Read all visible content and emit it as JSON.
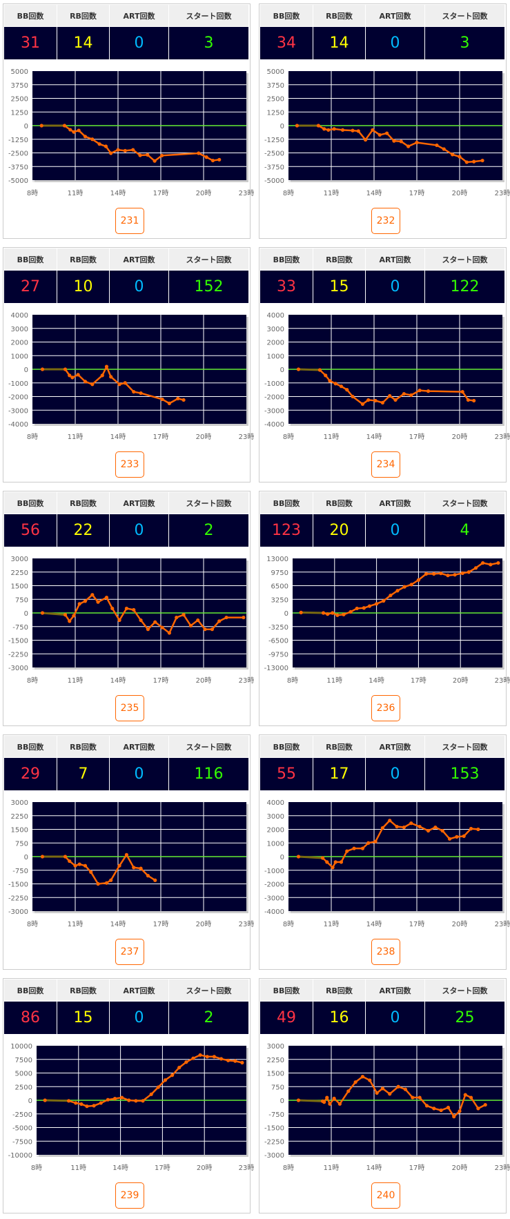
{
  "headers": {
    "bb": "BB回数",
    "rb": "RB回数",
    "art": "ART回数",
    "start": "スタート回数"
  },
  "colors": {
    "bb": "#ff3344",
    "rb": "#ffff00",
    "art": "#00bbff",
    "start": "#33ff00",
    "plot_bg": "#000030",
    "line": "#ff6600",
    "zero_line": "#66ee33",
    "button": "#ff6600"
  },
  "machines": [
    {
      "id": "231",
      "bb": "31",
      "rb": "14",
      "art": "0",
      "start": "3"
    },
    {
      "id": "232",
      "bb": "34",
      "rb": "14",
      "art": "0",
      "start": "3"
    },
    {
      "id": "233",
      "bb": "27",
      "rb": "10",
      "art": "0",
      "start": "152"
    },
    {
      "id": "234",
      "bb": "33",
      "rb": "15",
      "art": "0",
      "start": "122"
    },
    {
      "id": "235",
      "bb": "56",
      "rb": "22",
      "art": "0",
      "start": "2"
    },
    {
      "id": "236",
      "bb": "123",
      "rb": "20",
      "art": "0",
      "start": "4"
    },
    {
      "id": "237",
      "bb": "29",
      "rb": "7",
      "art": "0",
      "start": "116"
    },
    {
      "id": "238",
      "bb": "55",
      "rb": "17",
      "art": "0",
      "start": "153"
    },
    {
      "id": "239",
      "bb": "86",
      "rb": "15",
      "art": "0",
      "start": "2"
    },
    {
      "id": "240",
      "bb": "49",
      "rb": "16",
      "art": "0",
      "start": "25"
    }
  ],
  "chart_data": [
    {
      "type": "line",
      "machine": "231",
      "xlim": [
        8,
        23
      ],
      "ylim": [
        -5000,
        5000
      ],
      "xticks": [
        "8時",
        "11時",
        "14時",
        "17時",
        "20時",
        "23時"
      ],
      "yticks": [
        "5000",
        "3750",
        "2500",
        "1250",
        "0",
        "-1250",
        "-2500",
        "-3750",
        "-5000"
      ],
      "points": [
        [
          8.64,
          0
        ],
        [
          10.25,
          0
        ],
        [
          10.65,
          -375
        ],
        [
          10.9,
          -580
        ],
        [
          11.25,
          -440
        ],
        [
          11.7,
          -1000
        ],
        [
          12.2,
          -1250
        ],
        [
          12.7,
          -1690
        ],
        [
          13.15,
          -1900
        ],
        [
          13.5,
          -2530
        ],
        [
          14.0,
          -2220
        ],
        [
          14.5,
          -2300
        ],
        [
          15.05,
          -2220
        ],
        [
          15.55,
          -2720
        ],
        [
          16.07,
          -2680
        ],
        [
          16.57,
          -3240
        ],
        [
          17.08,
          -2740
        ],
        [
          19.65,
          -2530
        ],
        [
          20.2,
          -2890
        ],
        [
          20.65,
          -3200
        ],
        [
          21.1,
          -3120
        ]
      ]
    },
    {
      "type": "line",
      "machine": "232",
      "xlim": [
        8,
        23
      ],
      "ylim": [
        -5000,
        5000
      ],
      "xticks": [
        "8時",
        "11時",
        "14時",
        "17時",
        "20時",
        "23時"
      ],
      "yticks": [
        "5000",
        "3750",
        "2500",
        "1250",
        "0",
        "-1250",
        "-2500",
        "-3750",
        "-5000"
      ],
      "points": [
        [
          8.6,
          0
        ],
        [
          10.1,
          0
        ],
        [
          10.5,
          -300
        ],
        [
          10.8,
          -400
        ],
        [
          11.2,
          -300
        ],
        [
          11.8,
          -400
        ],
        [
          12.5,
          -450
        ],
        [
          12.9,
          -500
        ],
        [
          13.4,
          -1300
        ],
        [
          13.9,
          -400
        ],
        [
          14.4,
          -850
        ],
        [
          14.9,
          -700
        ],
        [
          15.4,
          -1400
        ],
        [
          15.9,
          -1450
        ],
        [
          16.4,
          -1900
        ],
        [
          17.0,
          -1550
        ],
        [
          18.4,
          -1800
        ],
        [
          18.9,
          -2150
        ],
        [
          19.5,
          -2650
        ],
        [
          20,
          -2850
        ],
        [
          20.5,
          -3350
        ],
        [
          21,
          -3300
        ],
        [
          21.6,
          -3200
        ]
      ]
    },
    {
      "type": "line",
      "machine": "233",
      "xlim": [
        8,
        23
      ],
      "ylim": [
        -4000,
        4000
      ],
      "xticks": [
        "8時",
        "11時",
        "14時",
        "17時",
        "20時",
        "23時"
      ],
      "yticks": [
        "4000",
        "3000",
        "2000",
        "1000",
        "0",
        "-1000",
        "-2000",
        "-3000",
        "-4000"
      ],
      "points": [
        [
          8.7,
          0
        ],
        [
          10.3,
          0
        ],
        [
          10.6,
          -450
        ],
        [
          10.8,
          -600
        ],
        [
          11.2,
          -400
        ],
        [
          11.7,
          -900
        ],
        [
          12.2,
          -1100
        ],
        [
          12.9,
          -450
        ],
        [
          13.2,
          200
        ],
        [
          13.5,
          -550
        ],
        [
          14.1,
          -1100
        ],
        [
          14.5,
          -1000
        ],
        [
          15.1,
          -1650
        ],
        [
          15.6,
          -1750
        ],
        [
          17.1,
          -2200
        ],
        [
          17.6,
          -2500
        ],
        [
          18.2,
          -2150
        ],
        [
          18.6,
          -2250
        ]
      ]
    },
    {
      "type": "line",
      "machine": "234",
      "xlim": [
        8,
        23
      ],
      "ylim": [
        -4000,
        4000
      ],
      "xticks": [
        "8時",
        "11時",
        "14時",
        "17時",
        "20時",
        "23時"
      ],
      "yticks": [
        "4000",
        "3000",
        "2000",
        "1000",
        "0",
        "-1000",
        "-2000",
        "-3000",
        "-4000"
      ],
      "points": [
        [
          8.7,
          0
        ],
        [
          10.2,
          -50
        ],
        [
          10.6,
          -450
        ],
        [
          10.9,
          -850
        ],
        [
          11.3,
          -1050
        ],
        [
          11.7,
          -1250
        ],
        [
          12.1,
          -1500
        ],
        [
          12.5,
          -2000
        ],
        [
          13.2,
          -2550
        ],
        [
          13.6,
          -2250
        ],
        [
          14.1,
          -2300
        ],
        [
          14.6,
          -2450
        ],
        [
          15.1,
          -1950
        ],
        [
          15.5,
          -2250
        ],
        [
          16.1,
          -1800
        ],
        [
          16.6,
          -1900
        ],
        [
          17.2,
          -1550
        ],
        [
          17.8,
          -1600
        ],
        [
          20.2,
          -1650
        ],
        [
          20.6,
          -2250
        ],
        [
          21,
          -2300
        ]
      ]
    },
    {
      "type": "line",
      "machine": "235",
      "xlim": [
        8,
        23
      ],
      "ylim": [
        -3000,
        3000
      ],
      "xticks": [
        "8時",
        "11時",
        "14時",
        "17時",
        "20時",
        "23時"
      ],
      "yticks": [
        "3000",
        "2250",
        "1500",
        "750",
        "0",
        "-750",
        "-1500",
        "-2250",
        "-3000"
      ],
      "points": [
        [
          8.7,
          0
        ],
        [
          10.3,
          -100
        ],
        [
          10.6,
          -450
        ],
        [
          10.9,
          -150
        ],
        [
          11.3,
          500
        ],
        [
          11.7,
          650
        ],
        [
          12.2,
          1000
        ],
        [
          12.6,
          600
        ],
        [
          13.2,
          850
        ],
        [
          13.6,
          250
        ],
        [
          14.1,
          -400
        ],
        [
          14.6,
          250
        ],
        [
          15.1,
          170
        ],
        [
          15.6,
          -400
        ],
        [
          16.1,
          -900
        ],
        [
          16.6,
          -500
        ],
        [
          17.1,
          -800
        ],
        [
          17.6,
          -1100
        ],
        [
          18.1,
          -250
        ],
        [
          18.6,
          -100
        ],
        [
          19.1,
          -700
        ],
        [
          19.6,
          -400
        ],
        [
          20.1,
          -900
        ],
        [
          20.6,
          -900
        ],
        [
          21.1,
          -450
        ],
        [
          21.6,
          -250
        ],
        [
          22.8,
          -250
        ]
      ]
    },
    {
      "type": "line",
      "machine": "236",
      "xlim": [
        8,
        23
      ],
      "ylim": [
        -13000,
        13000
      ],
      "xticks": [
        "8時",
        "11時",
        "14時",
        "17時",
        "20時",
        "23時"
      ],
      "yticks": [
        "13000",
        "9750",
        "6500",
        "3250",
        "0",
        "-3250",
        "-6500",
        "-9750",
        "-13000"
      ],
      "points": [
        [
          8.6,
          100
        ],
        [
          10.2,
          0
        ],
        [
          10.5,
          -270
        ],
        [
          10.85,
          0
        ],
        [
          11.2,
          -540
        ],
        [
          11.65,
          -380
        ],
        [
          12.15,
          270
        ],
        [
          12.6,
          1080
        ],
        [
          13.1,
          1190
        ],
        [
          13.5,
          1630
        ],
        [
          14,
          2170
        ],
        [
          14.5,
          2870
        ],
        [
          15,
          4170
        ],
        [
          15.5,
          5310
        ],
        [
          16,
          6230
        ],
        [
          16.5,
          6770
        ],
        [
          17,
          7860
        ],
        [
          17.55,
          9320
        ],
        [
          18.1,
          9320
        ],
        [
          18.6,
          9430
        ],
        [
          19.1,
          8940
        ],
        [
          19.6,
          9100
        ],
        [
          20.15,
          9480
        ],
        [
          20.6,
          9750
        ],
        [
          21.1,
          10730
        ],
        [
          21.6,
          11920
        ],
        [
          22.15,
          11540
        ],
        [
          22.7,
          11920
        ]
      ]
    },
    {
      "type": "line",
      "machine": "237",
      "xlim": [
        8,
        23
      ],
      "ylim": [
        -3000,
        3000
      ],
      "xticks": [
        "8時",
        "11時",
        "14時",
        "17時",
        "20時",
        "23時"
      ],
      "yticks": [
        "3000",
        "2250",
        "1500",
        "750",
        "0",
        "-750",
        "-1500",
        "-2250",
        "-3000"
      ],
      "points": [
        [
          8.7,
          0
        ],
        [
          10.3,
          0
        ],
        [
          10.6,
          -250
        ],
        [
          11,
          -500
        ],
        [
          11.3,
          -420
        ],
        [
          11.7,
          -500
        ],
        [
          12.1,
          -850
        ],
        [
          12.6,
          -1500
        ],
        [
          13.2,
          -1450
        ],
        [
          13.5,
          -1300
        ],
        [
          14.1,
          -500
        ],
        [
          14.6,
          100
        ],
        [
          15.1,
          -600
        ],
        [
          15.6,
          -650
        ],
        [
          16.1,
          -1050
        ],
        [
          16.6,
          -1300
        ]
      ]
    },
    {
      "type": "line",
      "machine": "238",
      "xlim": [
        8,
        23
      ],
      "ylim": [
        -4000,
        4000
      ],
      "xticks": [
        "8時",
        "11時",
        "14時",
        "17時",
        "20時",
        "23時"
      ],
      "yticks": [
        "4000",
        "3000",
        "2000",
        "1000",
        "0",
        "-1000",
        "-2000",
        "-3000",
        "-4000"
      ],
      "points": [
        [
          8.7,
          0
        ],
        [
          10.4,
          -100
        ],
        [
          10.7,
          -400
        ],
        [
          11.1,
          -800
        ],
        [
          11.3,
          -400
        ],
        [
          11.7,
          -400
        ],
        [
          12.1,
          400
        ],
        [
          12.6,
          600
        ],
        [
          13.2,
          600
        ],
        [
          13.6,
          1000
        ],
        [
          14.1,
          1100
        ],
        [
          14.6,
          2100
        ],
        [
          15.1,
          2650
        ],
        [
          15.6,
          2200
        ],
        [
          16.1,
          2150
        ],
        [
          16.6,
          2450
        ],
        [
          17.2,
          2200
        ],
        [
          17.8,
          1900
        ],
        [
          18.3,
          2150
        ],
        [
          18.8,
          1900
        ],
        [
          19.3,
          1300
        ],
        [
          19.8,
          1450
        ],
        [
          20.3,
          1500
        ],
        [
          20.8,
          2050
        ],
        [
          21.3,
          2000
        ]
      ]
    },
    {
      "type": "line",
      "machine": "239",
      "xlim": [
        8,
        23
      ],
      "ylim": [
        -10000,
        10000
      ],
      "xticks": [
        "8時",
        "11時",
        "14時",
        "17時",
        "20時",
        "23時"
      ],
      "yticks": [
        "10000",
        "7500",
        "5000",
        "2500",
        "0",
        "-2500",
        "-5000",
        "-7500",
        "-10000"
      ],
      "points": [
        [
          8.6,
          0
        ],
        [
          10.3,
          -100
        ],
        [
          10.8,
          -500
        ],
        [
          11.2,
          -700
        ],
        [
          11.6,
          -1100
        ],
        [
          12.1,
          -1000
        ],
        [
          12.6,
          -500
        ],
        [
          13.1,
          100
        ],
        [
          13.6,
          300
        ],
        [
          14.1,
          500
        ],
        [
          14.6,
          0
        ],
        [
          15.1,
          -100
        ],
        [
          15.6,
          -100
        ],
        [
          16.2,
          1100
        ],
        [
          16.7,
          2400
        ],
        [
          17.2,
          3700
        ],
        [
          17.7,
          4600
        ],
        [
          18.2,
          6000
        ],
        [
          18.7,
          7000
        ],
        [
          19.2,
          7700
        ],
        [
          19.7,
          8300
        ],
        [
          20.2,
          8000
        ],
        [
          20.7,
          8000
        ],
        [
          21.2,
          7600
        ],
        [
          21.7,
          7300
        ],
        [
          22.2,
          7200
        ],
        [
          22.7,
          6900
        ]
      ]
    },
    {
      "type": "line",
      "machine": "240",
      "xlim": [
        8,
        23
      ],
      "ylim": [
        -3000,
        3000
      ],
      "xticks": [
        "8時",
        "11時",
        "14時",
        "17時",
        "20時",
        "23時"
      ],
      "yticks": [
        "3000",
        "2250",
        "1500",
        "750",
        "0",
        "-750",
        "-1500",
        "-2250",
        "-3000"
      ],
      "points": [
        [
          8.7,
          0
        ],
        [
          10.4,
          -50
        ],
        [
          10.5,
          -100
        ],
        [
          10.7,
          150
        ],
        [
          10.9,
          -200
        ],
        [
          11.2,
          100
        ],
        [
          11.6,
          -200
        ],
        [
          12.2,
          500
        ],
        [
          12.7,
          1000
        ],
        [
          13.2,
          1300
        ],
        [
          13.7,
          1100
        ],
        [
          14.2,
          400
        ],
        [
          14.6,
          650
        ],
        [
          15.1,
          350
        ],
        [
          15.7,
          750
        ],
        [
          16.2,
          600
        ],
        [
          16.7,
          150
        ],
        [
          17.2,
          150
        ],
        [
          17.7,
          -300
        ],
        [
          18.2,
          -450
        ],
        [
          18.7,
          -550
        ],
        [
          19.2,
          -400
        ],
        [
          19.6,
          -900
        ],
        [
          20,
          -600
        ],
        [
          20.4,
          300
        ],
        [
          20.8,
          150
        ],
        [
          21.3,
          -450
        ],
        [
          21.8,
          -250
        ]
      ]
    }
  ]
}
